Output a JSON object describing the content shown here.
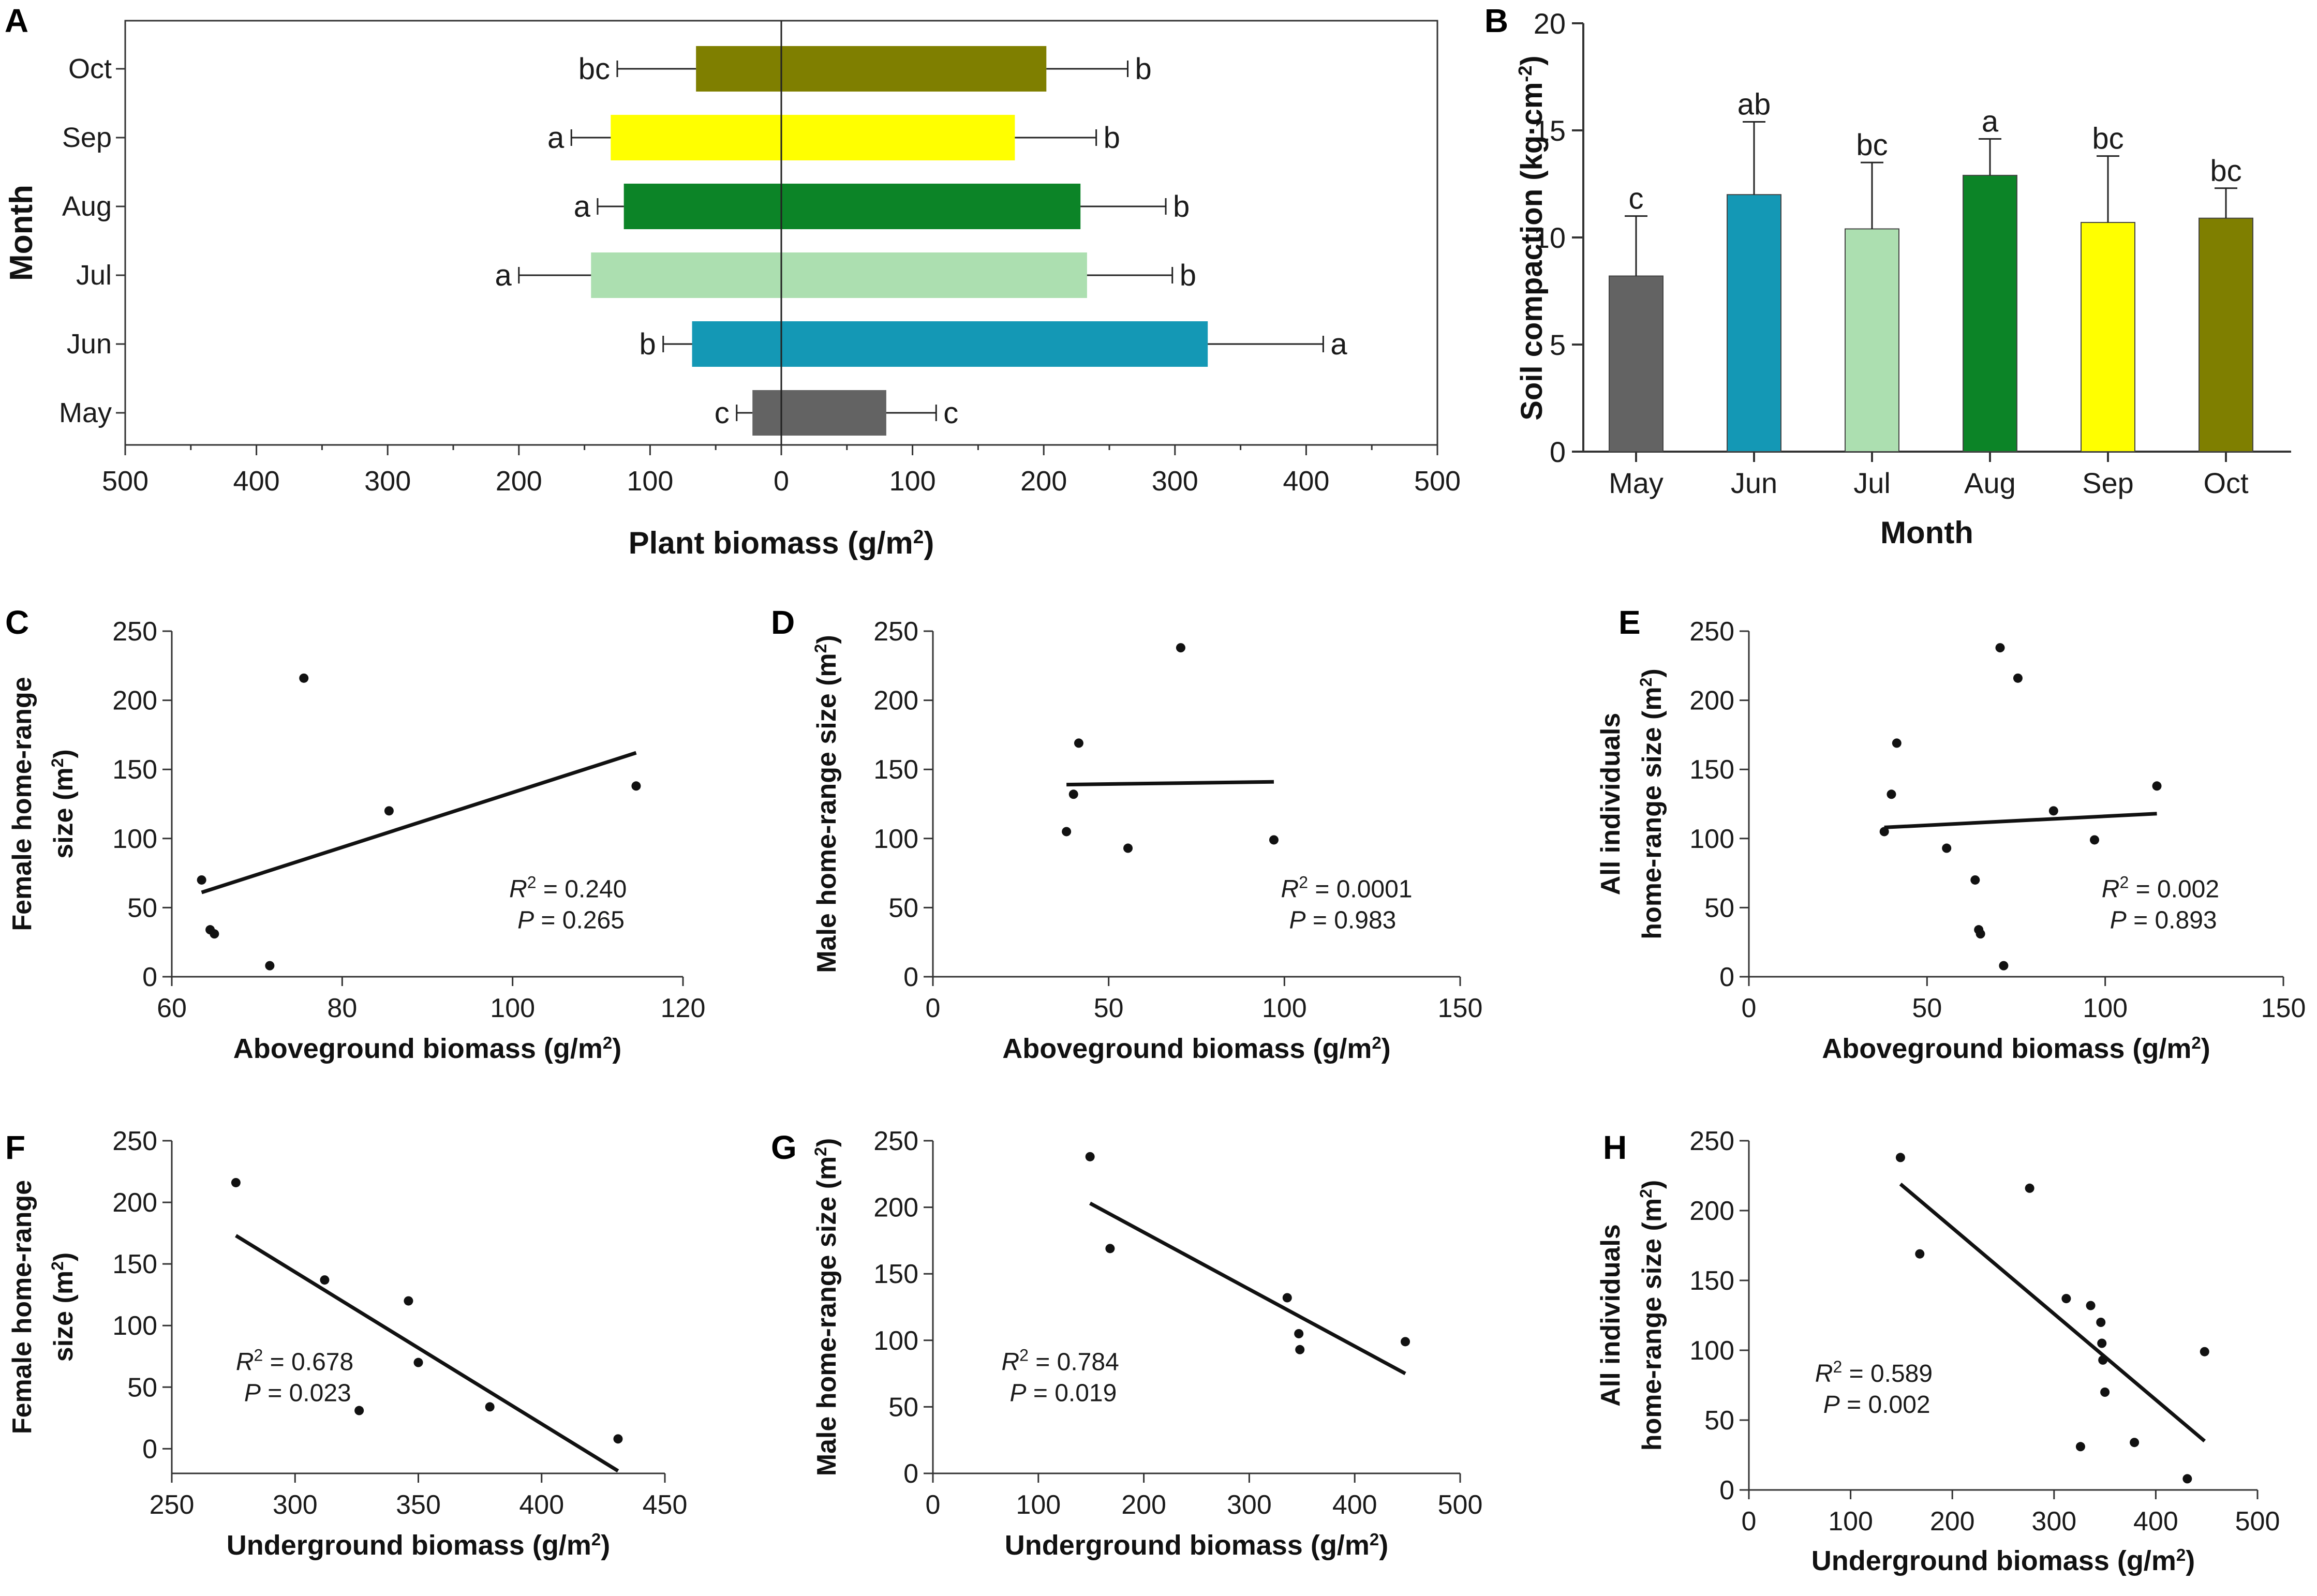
{
  "chart_data": [
    {
      "panel": "A",
      "type": "bar",
      "orientation": "horizontal-diverging",
      "title": "",
      "xlabel": "Plant biomass (g/m",
      "xlabel_sup": "2",
      "xlabel_end": ")",
      "ylabel": "Month",
      "xlim": [
        -500,
        500
      ],
      "xticks": [
        -500,
        -400,
        -300,
        -200,
        -100,
        0,
        100,
        200,
        300,
        400,
        500
      ],
      "xtick_labels": [
        "500",
        "400",
        "300",
        "200",
        "100",
        "0",
        "100",
        "200",
        "300",
        "400",
        "500"
      ],
      "categories": [
        "May",
        "Jun",
        "Jul",
        "Aug",
        "Sep",
        "Oct"
      ],
      "colors": [
        "#636363",
        "#1498b5",
        "#acdfb0",
        "#0c8427",
        "#ffff00",
        "#7f7f00"
      ],
      "underground": {
        "values": [
          -22,
          -68,
          -145,
          -120,
          -130,
          -65
        ],
        "errors": [
          12,
          22,
          55,
          20,
          30,
          60
        ],
        "letters": [
          "c",
          "b",
          "a",
          "a",
          "a",
          "bc"
        ]
      },
      "aboveground": {
        "values": [
          80,
          325,
          233,
          228,
          178,
          202
        ],
        "errors": [
          38,
          88,
          65,
          65,
          62,
          62
        ],
        "letters": [
          "c",
          "a",
          "b",
          "b",
          "b",
          "b"
        ]
      }
    },
    {
      "panel": "B",
      "type": "bar",
      "title": "",
      "xlabel": "Month",
      "ylabel": "Soil compaction (kg·cm",
      "ylabel_sup": "-2",
      "ylabel_end": ")",
      "ylim": [
        0,
        20
      ],
      "yticks": [
        0,
        5,
        10,
        15,
        20
      ],
      "categories": [
        "May",
        "Jun",
        "Jul",
        "Aug",
        "Sep",
        "Oct"
      ],
      "values": [
        8.2,
        12.0,
        10.4,
        12.9,
        10.7,
        10.9
      ],
      "errors": [
        2.8,
        3.4,
        3.1,
        1.7,
        3.1,
        1.4
      ],
      "letters": [
        "c",
        "ab",
        "bc",
        "a",
        "bc",
        "bc"
      ],
      "colors": [
        "#636363",
        "#1498b5",
        "#acdfb0",
        "#0c8427",
        "#ffff00",
        "#7f7f00"
      ]
    },
    {
      "panel": "C",
      "type": "scatter",
      "xlabel": "Aboveground biomass (g/m",
      "ylabel": [
        "Female home-range",
        "size (m"
      ],
      "xlim": [
        60,
        120
      ],
      "ylim": [
        0,
        250
      ],
      "xticks": [
        60,
        80,
        100,
        120
      ],
      "yticks": [
        0,
        50,
        100,
        150,
        200,
        250
      ],
      "points": [
        [
          63.5,
          70
        ],
        [
          64.5,
          34
        ],
        [
          65,
          31
        ],
        [
          71.5,
          8
        ],
        [
          75.5,
          216
        ],
        [
          85.5,
          120
        ],
        [
          114.5,
          138
        ]
      ],
      "fit": [
        [
          63.5,
          61
        ],
        [
          114.5,
          162
        ]
      ],
      "r2": "= 0.240",
      "p": "= 0.265",
      "stat_pos": "bottom-right"
    },
    {
      "panel": "D",
      "type": "scatter",
      "xlabel": "Aboveground biomass (g/m",
      "ylabel": [
        "Male home-range size (m"
      ],
      "xlim": [
        0,
        150
      ],
      "ylim": [
        0,
        250
      ],
      "xticks": [
        0,
        50,
        100,
        150
      ],
      "yticks": [
        0,
        50,
        100,
        150,
        200,
        250
      ],
      "points": [
        [
          38,
          105
        ],
        [
          40,
          132
        ],
        [
          41.5,
          169
        ],
        [
          55.5,
          93
        ],
        [
          70.5,
          238
        ],
        [
          97,
          99
        ]
      ],
      "fit": [
        [
          38,
          139
        ],
        [
          97,
          141
        ]
      ],
      "r2": "= 0.0001",
      "p": "= 0.983",
      "stat_pos": "bottom-right"
    },
    {
      "panel": "E",
      "type": "scatter",
      "xlabel": "Aboveground biomass (g/m",
      "ylabel": [
        "All individuals",
        "home-range size (m"
      ],
      "xlim": [
        0,
        150
      ],
      "ylim": [
        0,
        250
      ],
      "xticks": [
        0,
        50,
        100,
        150
      ],
      "yticks": [
        0,
        50,
        100,
        150,
        200,
        250
      ],
      "points": [
        [
          38,
          105
        ],
        [
          40,
          132
        ],
        [
          41.5,
          169
        ],
        [
          55.5,
          93
        ],
        [
          63.5,
          70
        ],
        [
          64.5,
          34
        ],
        [
          65,
          31
        ],
        [
          70.5,
          238
        ],
        [
          71.5,
          8
        ],
        [
          75.5,
          216
        ],
        [
          85.5,
          120
        ],
        [
          97,
          99
        ],
        [
          114.5,
          138
        ]
      ],
      "fit": [
        [
          38,
          108
        ],
        [
          114.5,
          118
        ]
      ],
      "r2": "= 0.002",
      "p": "= 0.893",
      "stat_pos": "bottom-right"
    },
    {
      "panel": "F",
      "type": "scatter",
      "xlabel": "Underground biomass (g/m",
      "ylabel": [
        "Female home-range",
        "size (m"
      ],
      "xlim": [
        250,
        450
      ],
      "ylim": [
        -20,
        250
      ],
      "xticks": [
        250,
        300,
        350,
        400,
        450
      ],
      "yticks": [
        0,
        50,
        100,
        150,
        200,
        250
      ],
      "points": [
        [
          276,
          216
        ],
        [
          312,
          137
        ],
        [
          326,
          31
        ],
        [
          346,
          120
        ],
        [
          350,
          70
        ],
        [
          379,
          34
        ],
        [
          431,
          8
        ]
      ],
      "fit": [
        [
          276,
          173
        ],
        [
          431,
          -18
        ]
      ],
      "r2": "= 0.678",
      "p": "= 0.023",
      "stat_pos": "left"
    },
    {
      "panel": "G",
      "type": "scatter",
      "xlabel": "Underground biomass (g/m",
      "ylabel": [
        "Male home-range size (m"
      ],
      "xlim": [
        0,
        500
      ],
      "ylim": [
        0,
        250
      ],
      "xticks": [
        0,
        100,
        200,
        300,
        400,
        500
      ],
      "yticks": [
        0,
        50,
        100,
        150,
        200,
        250
      ],
      "points": [
        [
          149,
          238
        ],
        [
          168,
          169
        ],
        [
          336,
          132
        ],
        [
          347,
          105
        ],
        [
          348,
          93
        ],
        [
          448,
          99
        ]
      ],
      "fit": [
        [
          149,
          203
        ],
        [
          448,
          75
        ]
      ],
      "r2": "= 0.784",
      "p": "= 0.019",
      "stat_pos": "left"
    },
    {
      "panel": "H",
      "type": "scatter",
      "xlabel": "Underground biomass (g/m",
      "ylabel": [
        "All individuals",
        "home-range size (m"
      ],
      "xlim": [
        0,
        500
      ],
      "ylim": [
        0,
        250
      ],
      "xticks": [
        0,
        100,
        200,
        300,
        400,
        500
      ],
      "yticks": [
        0,
        50,
        100,
        150,
        200,
        250
      ],
      "points": [
        [
          149,
          238
        ],
        [
          168,
          169
        ],
        [
          276,
          216
        ],
        [
          312,
          137
        ],
        [
          326,
          31
        ],
        [
          336,
          132
        ],
        [
          346,
          120
        ],
        [
          347,
          105
        ],
        [
          348,
          93
        ],
        [
          350,
          70
        ],
        [
          379,
          34
        ],
        [
          431,
          8
        ],
        [
          448,
          99
        ]
      ],
      "fit": [
        [
          149,
          219
        ],
        [
          448,
          35
        ]
      ],
      "r2": "= 0.589",
      "p": "= 0.002",
      "stat_pos": "left"
    }
  ],
  "labels": {
    "r2_prefix": "R",
    "r2_sup": "2",
    "p_prefix": "P",
    "unit_sup": "2",
    "paren_close": ")"
  }
}
